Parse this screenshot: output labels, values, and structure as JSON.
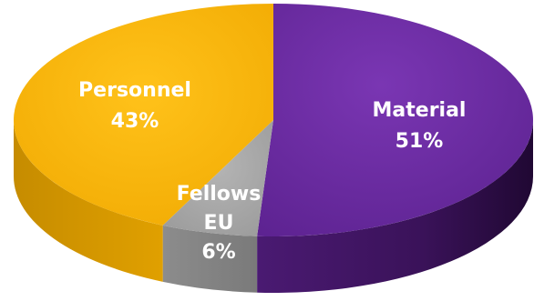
{
  "chart_data": {
    "type": "pie",
    "style": "3d",
    "slices": [
      {
        "name": "Material",
        "label_lines": [
          "Material",
          "51%"
        ],
        "value": 51,
        "color": "#6a2c9e"
      },
      {
        "name": "Fellows EU",
        "label_lines": [
          "Fellows",
          "EU",
          "6%"
        ],
        "value": 6,
        "color": "#a5a5a5"
      },
      {
        "name": "Personnel",
        "label_lines": [
          "Personnel",
          "43%"
        ],
        "value": 43,
        "color": "#f6b300"
      }
    ],
    "title": "",
    "legend": "none"
  }
}
